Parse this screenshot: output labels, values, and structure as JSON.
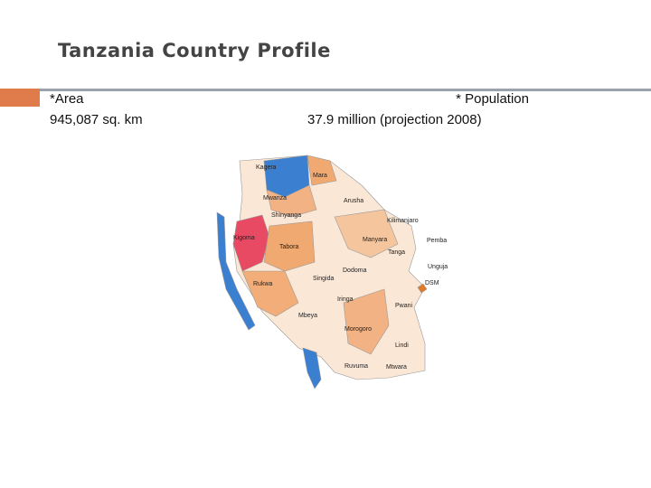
{
  "header": {
    "title": "Tanzania Country Profile"
  },
  "facts": {
    "area": {
      "label": "*Area",
      "value": "945,087 sq. km"
    },
    "population": {
      "label": "* Population",
      "value": "37.9 million (projection 2008)"
    }
  },
  "map": {
    "regions": [
      "Kagera",
      "Mara",
      "Mwanza",
      "Arusha",
      "Shinyanga",
      "Kilimanjaro",
      "Kigoma",
      "Tabora",
      "Manyara",
      "Pemba",
      "Tanga",
      "Unguja",
      "Dodoma",
      "Singida",
      "DSM",
      "Rukwa",
      "Iringa",
      "Pwani",
      "Mbeya",
      "Morogoro",
      "Lindi",
      "Ruvuma",
      "Mtwara"
    ]
  }
}
